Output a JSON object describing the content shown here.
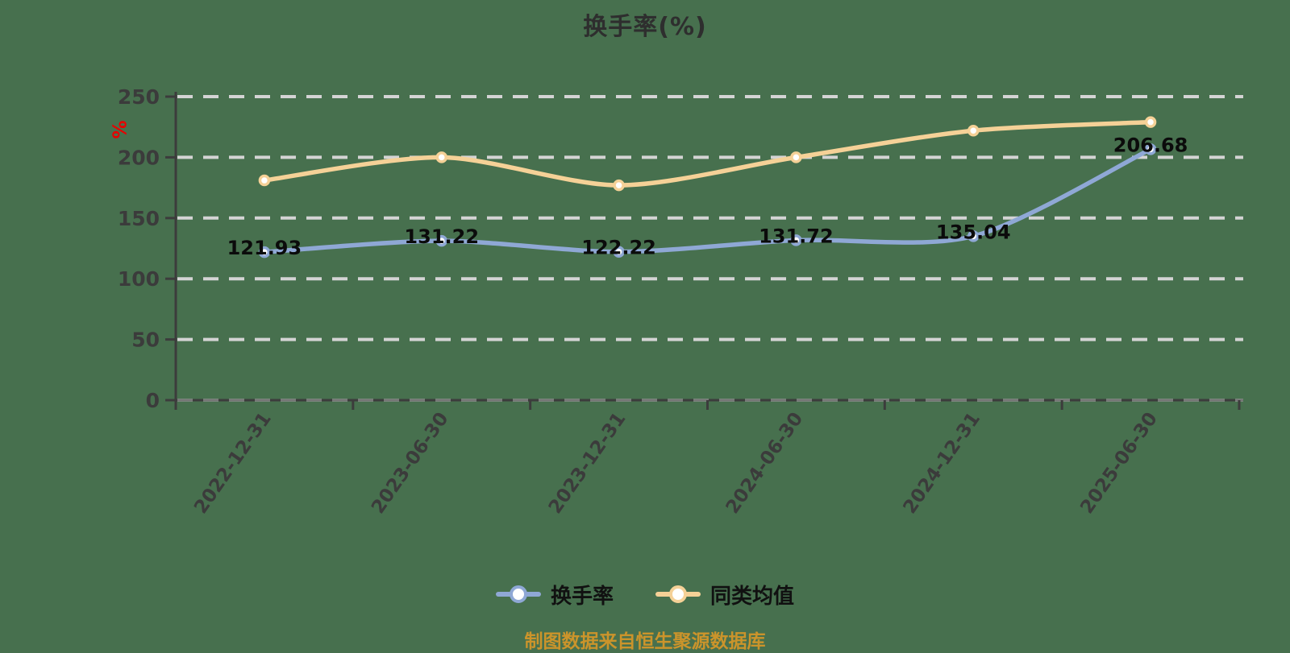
{
  "title": "换手率(%)",
  "y_unit_label": "%",
  "footer_note": "制图数据来自恒生聚源数据库",
  "colors": {
    "background": "#47704E",
    "title_text": "#2E2E2E",
    "axis": "#3C3C3C",
    "tick_label": "#3B3B3B",
    "gridline": "#D4D4D4",
    "data_label": "#0B0B0B",
    "y_unit_red": "#E80000",
    "footer_text": "#CB942B",
    "turnover_series": "#8FA8D5",
    "peer_series": "#F5D197"
  },
  "legend": {
    "items": [
      {
        "label": "换手率",
        "color": "#8FA8D5"
      },
      {
        "label": "同类均值",
        "color": "#F5D197"
      }
    ]
  },
  "chart_data": {
    "type": "line",
    "title": "换手率(%)",
    "categories": [
      "2022-12-31",
      "2023-06-30",
      "2023-12-31",
      "2024-06-30",
      "2024-12-31",
      "2025-06-30"
    ],
    "series": [
      {
        "name": "换手率",
        "color": "#8FA8D5",
        "values": [
          121.93,
          131.22,
          122.22,
          131.72,
          135.04,
          206.68
        ],
        "point_labels": [
          "121.93",
          "131.22",
          "122.22",
          "131.72",
          "135.04",
          "206.68"
        ],
        "show_point_labels": true,
        "smooth": true
      },
      {
        "name": "同类均值",
        "color": "#F5D197",
        "values": [
          181,
          200,
          177,
          200,
          222,
          229
        ],
        "point_labels": [],
        "show_point_labels": false,
        "smooth": true
      }
    ],
    "ylabel": "%",
    "ylim": [
      0,
      250
    ],
    "yticks": [
      0,
      50,
      100,
      150,
      200,
      250
    ],
    "grid": "horizontal-dashed",
    "legend_position": "bottom"
  }
}
